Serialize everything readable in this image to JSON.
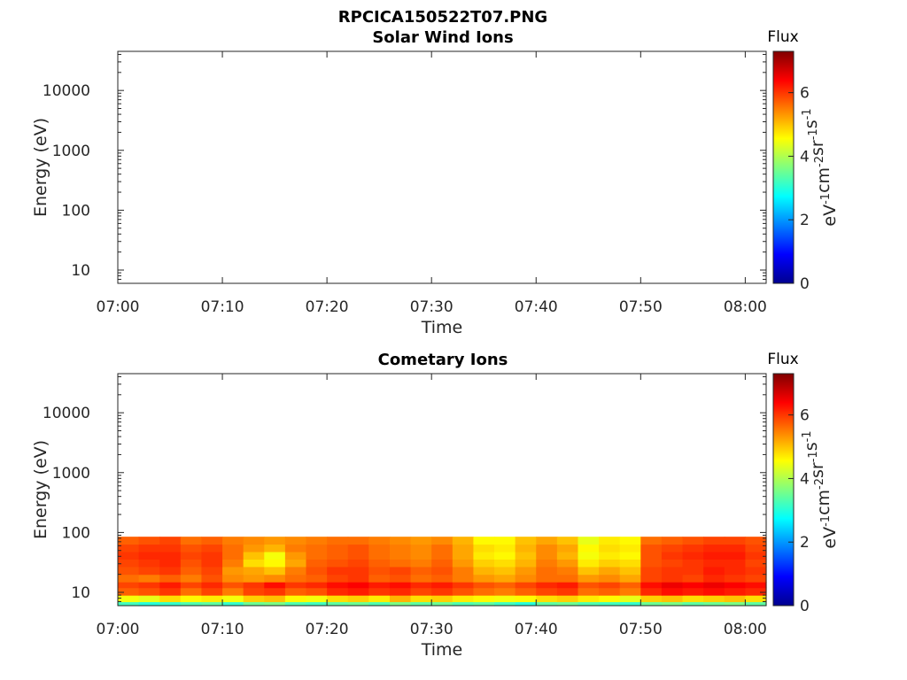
{
  "figure": {
    "title": "RPCICA150522T07.PNG"
  },
  "colorbar": {
    "label": "Flux",
    "unit_parts": [
      "eV",
      "-1",
      "cm",
      "-2",
      "sr",
      "-1",
      "s",
      "-1"
    ],
    "range": [
      0,
      7.3
    ],
    "ticks": [
      0,
      2,
      4,
      6
    ],
    "colormap": "jet"
  },
  "chart_data": [
    {
      "type": "heatmap",
      "title": "Solar Wind Ions",
      "xlabel": "Time",
      "ylabel": "Energy (eV)",
      "x_range": [
        "07:00",
        "08:02"
      ],
      "x_ticks": [
        "07:00",
        "07:10",
        "07:20",
        "07:30",
        "07:40",
        "07:50",
        "08:00"
      ],
      "y_scale": "log",
      "y_range": [
        6,
        45000
      ],
      "y_ticks": [
        10,
        100,
        1000,
        10000
      ],
      "y_tick_labels": [
        "10",
        "100",
        "1000",
        "10000"
      ],
      "energy_bins": [],
      "time_bins": [],
      "values": []
    },
    {
      "type": "heatmap",
      "title": "Cometary Ions",
      "xlabel": "Time",
      "ylabel": "Energy (eV)",
      "x_range": [
        "07:00",
        "08:02"
      ],
      "x_ticks": [
        "07:00",
        "07:10",
        "07:20",
        "07:30",
        "07:40",
        "07:50",
        "08:00"
      ],
      "y_scale": "log",
      "y_range": [
        6,
        45000
      ],
      "y_ticks": [
        10,
        100,
        1000,
        10000
      ],
      "y_tick_labels": [
        "10",
        "100",
        "1000",
        "10000"
      ],
      "energy_bins": [
        6,
        7,
        9,
        12,
        15,
        20,
        27,
        36,
        48,
        64,
        85
      ],
      "time_bins": [
        "07:00",
        "07:02",
        "07:04",
        "07:06",
        "07:08",
        "07:10",
        "07:12",
        "07:14",
        "07:16",
        "07:18",
        "07:20",
        "07:22",
        "07:24",
        "07:26",
        "07:28",
        "07:30",
        "07:32",
        "07:34",
        "07:36",
        "07:38",
        "07:40",
        "07:42",
        "07:44",
        "07:46",
        "07:48",
        "07:50",
        "07:52",
        "07:54",
        "07:56",
        "07:58",
        "08:00",
        "08:02"
      ],
      "values": [
        [
          3.2,
          3.0,
          3.1,
          3.3,
          3.4,
          3.1,
          3.5,
          3.6,
          3.3,
          3.2,
          3.4,
          3.5,
          3.3,
          3.6,
          3.4,
          3.5,
          3.3,
          3.4,
          3.2,
          3.0,
          3.4,
          3.5,
          3.3,
          3.2,
          3.1,
          3.5,
          3.6,
          3.4,
          3.5,
          3.6,
          3.4
        ],
        [
          4.5,
          4.4,
          4.8,
          4.6,
          4.7,
          4.5,
          4.9,
          5.0,
          4.6,
          4.5,
          4.8,
          4.9,
          4.7,
          5.1,
          4.8,
          4.9,
          4.7,
          4.6,
          4.5,
          4.6,
          4.8,
          4.9,
          4.7,
          4.6,
          4.4,
          4.9,
          5.0,
          4.8,
          4.9,
          5.0,
          4.8
        ],
        [
          5.7,
          5.8,
          6.0,
          5.6,
          5.9,
          5.5,
          5.9,
          6.0,
          5.7,
          5.8,
          6.1,
          6.2,
          6.0,
          6.1,
          5.9,
          6.0,
          5.8,
          5.6,
          5.5,
          5.7,
          5.9,
          6.0,
          5.6,
          5.7,
          5.5,
          6.1,
          6.3,
          6.2,
          6.3,
          6.2,
          6.1
        ],
        [
          5.9,
          6.0,
          6.2,
          5.9,
          6.1,
          5.8,
          6.0,
          6.3,
          6.0,
          6.1,
          6.3,
          6.4,
          6.2,
          6.3,
          6.1,
          6.2,
          6.0,
          5.8,
          5.7,
          5.9,
          6.1,
          6.2,
          5.8,
          5.9,
          5.7,
          6.3,
          6.5,
          6.4,
          6.5,
          6.4,
          6.3
        ],
        [
          5.6,
          5.5,
          5.7,
          5.5,
          5.8,
          5.4,
          5.3,
          5.4,
          5.6,
          5.7,
          5.9,
          6.0,
          5.7,
          5.8,
          5.6,
          5.7,
          5.5,
          5.3,
          5.2,
          5.4,
          5.6,
          5.6,
          5.3,
          5.4,
          5.2,
          5.9,
          6.0,
          5.9,
          6.1,
          6.0,
          5.9
        ],
        [
          5.8,
          5.9,
          6.0,
          5.7,
          5.9,
          5.3,
          5.2,
          5.0,
          5.5,
          5.8,
          6.0,
          6.0,
          5.8,
          5.9,
          5.7,
          5.8,
          5.5,
          5.1,
          5.0,
          5.3,
          5.6,
          5.5,
          5.0,
          5.2,
          5.0,
          5.9,
          6.0,
          6.0,
          6.2,
          6.1,
          6.0
        ],
        [
          5.9,
          6.0,
          6.1,
          5.8,
          6.0,
          5.5,
          4.8,
          4.6,
          5.2,
          5.7,
          5.8,
          5.9,
          5.7,
          5.6,
          5.5,
          5.7,
          5.3,
          4.9,
          4.8,
          5.1,
          5.5,
          5.3,
          4.7,
          4.9,
          4.8,
          5.8,
          5.9,
          6.0,
          6.1,
          6.1,
          5.9
        ],
        [
          6.0,
          6.1,
          6.1,
          5.9,
          6.0,
          5.6,
          5.0,
          4.5,
          5.3,
          5.6,
          5.7,
          5.8,
          5.6,
          5.5,
          5.4,
          5.6,
          5.2,
          4.7,
          4.6,
          5.0,
          5.4,
          5.1,
          4.5,
          4.7,
          4.6,
          5.8,
          6.0,
          6.1,
          6.2,
          6.2,
          6.0
        ],
        [
          5.9,
          6.0,
          6.0,
          5.8,
          5.9,
          5.6,
          5.3,
          5.1,
          5.5,
          5.6,
          5.7,
          5.8,
          5.6,
          5.5,
          5.4,
          5.6,
          5.2,
          4.8,
          4.7,
          5.1,
          5.4,
          5.2,
          4.6,
          4.8,
          4.7,
          5.8,
          5.9,
          6.0,
          6.1,
          6.1,
          5.9
        ],
        [
          5.7,
          5.8,
          5.9,
          5.6,
          5.7,
          5.5,
          5.4,
          5.3,
          5.4,
          5.5,
          5.6,
          5.6,
          5.5,
          5.4,
          5.3,
          5.4,
          5.1,
          4.6,
          4.6,
          5.0,
          5.2,
          5.0,
          4.4,
          4.7,
          4.6,
          5.6,
          5.7,
          5.8,
          5.9,
          5.9,
          5.8
        ]
      ]
    }
  ]
}
